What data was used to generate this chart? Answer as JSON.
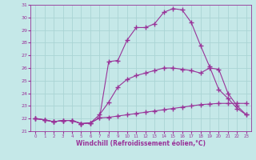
{
  "xlabel": "Windchill (Refroidissement éolien,°C)",
  "xlim": [
    -0.5,
    23.5
  ],
  "ylim": [
    21,
    31
  ],
  "xticks": [
    0,
    1,
    2,
    3,
    4,
    5,
    6,
    7,
    8,
    9,
    10,
    11,
    12,
    13,
    14,
    15,
    16,
    17,
    18,
    19,
    20,
    21,
    22,
    23
  ],
  "yticks": [
    21,
    22,
    23,
    24,
    25,
    26,
    27,
    28,
    29,
    30,
    31
  ],
  "background_color": "#c5e8e8",
  "grid_color": "#aad4d4",
  "line_color": "#993399",
  "marker": "+",
  "lines": [
    {
      "x": [
        0,
        1,
        2,
        3,
        4,
        5,
        6,
        7,
        8,
        9,
        10,
        11,
        12,
        13,
        14,
        15,
        16,
        17,
        18,
        19,
        20,
        21,
        22,
        23
      ],
      "y": [
        22.0,
        21.9,
        21.75,
        21.85,
        21.85,
        21.6,
        21.65,
        22.05,
        26.5,
        26.6,
        28.2,
        29.2,
        29.2,
        29.5,
        30.4,
        30.7,
        30.6,
        29.6,
        27.8,
        26.1,
        24.3,
        23.6,
        22.8,
        22.3
      ]
    },
    {
      "x": [
        0,
        1,
        2,
        3,
        4,
        5,
        6,
        7,
        8,
        9,
        10,
        11,
        12,
        13,
        14,
        15,
        16,
        17,
        18,
        19,
        20,
        21,
        22,
        23
      ],
      "y": [
        22.0,
        21.9,
        21.75,
        21.85,
        21.85,
        21.6,
        21.65,
        22.05,
        22.1,
        22.2,
        22.3,
        22.4,
        22.5,
        22.6,
        22.7,
        22.8,
        22.9,
        23.0,
        23.1,
        23.15,
        23.2,
        23.2,
        23.2,
        23.2
      ]
    },
    {
      "x": [
        0,
        1,
        2,
        3,
        4,
        5,
        6,
        7,
        8,
        9,
        10,
        11,
        12,
        13,
        14,
        15,
        16,
        17,
        18,
        19,
        20,
        21,
        22,
        23
      ],
      "y": [
        22.0,
        21.9,
        21.75,
        21.85,
        21.85,
        21.6,
        21.65,
        22.3,
        23.3,
        24.5,
        25.1,
        25.4,
        25.6,
        25.8,
        26.0,
        26.0,
        25.9,
        25.8,
        25.6,
        26.0,
        25.9,
        24.0,
        23.0,
        22.3
      ]
    }
  ]
}
